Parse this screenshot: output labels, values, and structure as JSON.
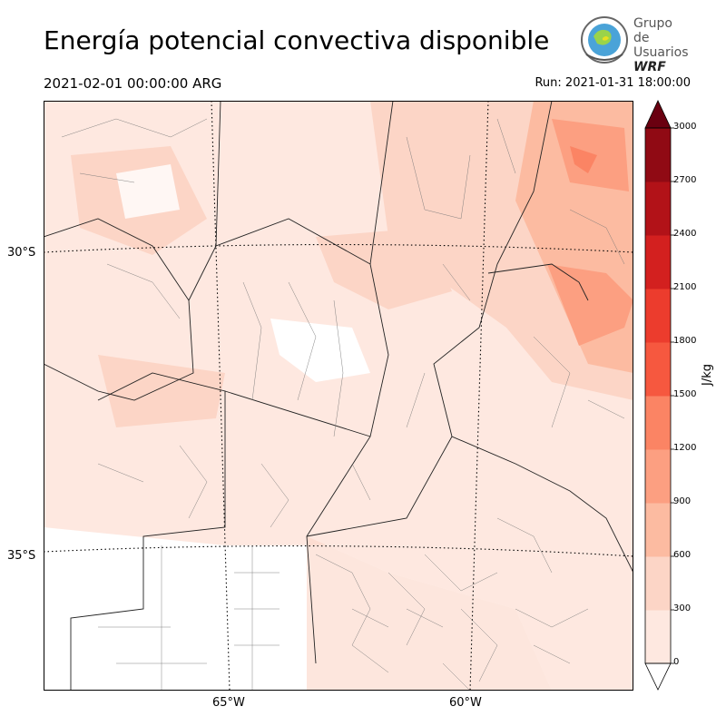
{
  "header": {
    "title": "Energía potencial convectiva disponible",
    "valid_time": "2021-02-01 00:00:00 ARG",
    "run_time": "Run: 2021-01-31 18:00:00"
  },
  "logo": {
    "line1": "Grupo de",
    "line2": "Usuarios",
    "line3": "WRF"
  },
  "map": {
    "lat_labels": [
      "30°S",
      "35°S"
    ],
    "lon_labels": [
      "65°W",
      "60°W"
    ]
  },
  "colorbar": {
    "unit": "J/kg",
    "ticks": [
      "0",
      "300",
      "600",
      "900",
      "1200",
      "1500",
      "1800",
      "2100",
      "2400",
      "2700",
      "3000"
    ],
    "colors": [
      "#fee8e0",
      "#fcd5c6",
      "#fcbba1",
      "#fc9f81",
      "#fb8464",
      "#f6583f",
      "#ec3c2d",
      "#d3201f",
      "#b21218",
      "#900a14",
      "#6a0010"
    ]
  }
}
